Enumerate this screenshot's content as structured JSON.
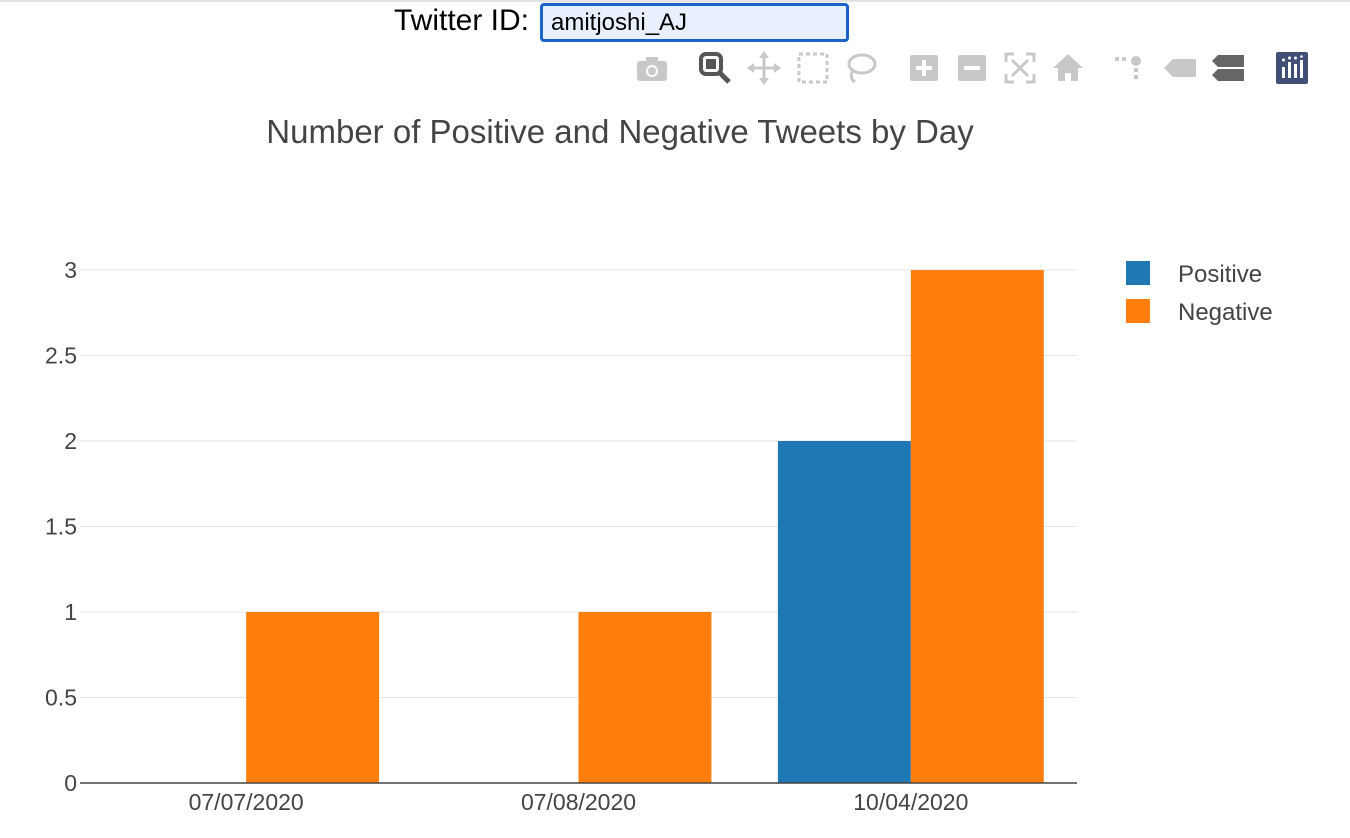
{
  "header": {
    "twitter_id_label": "Twitter ID:",
    "twitter_id_value": "amitjoshi_AJ"
  },
  "modebar": {
    "buttons": [
      "camera-icon",
      "zoom-icon",
      "pan-icon",
      "box-select-icon",
      "lasso-select-icon",
      "zoom-in-icon",
      "zoom-out-icon",
      "autoscale-icon",
      "reset-axes-icon",
      "spike-lines-icon",
      "hover-closest-icon",
      "hover-compare-icon",
      "plotly-logo-icon"
    ]
  },
  "colors": {
    "positive": "#1f77b4",
    "negative": "#ff7f0e",
    "grid": "#e6e6e6",
    "axis_text": "#444444",
    "modebar_icon": "#c8c8c8",
    "modebar_active": "#555555",
    "plotly_logo": "#3f4f75"
  },
  "chart_data": {
    "type": "bar",
    "title": "Number of Positive and Negative Tweets by Day",
    "xlabel": "",
    "ylabel": "",
    "categories": [
      "07/07/2020",
      "07/08/2020",
      "10/04/2020"
    ],
    "series": [
      {
        "name": "Positive",
        "values": [
          0,
          0,
          2
        ]
      },
      {
        "name": "Negative",
        "values": [
          1,
          1,
          3
        ]
      }
    ],
    "ylim": [
      0,
      3
    ],
    "yticks": [
      0,
      0.5,
      1,
      1.5,
      2,
      2.5,
      3
    ],
    "ytick_labels": [
      "0",
      "0.5",
      "1",
      "1.5",
      "2",
      "2.5",
      "3"
    ],
    "grid": true,
    "legend_position": "right"
  }
}
